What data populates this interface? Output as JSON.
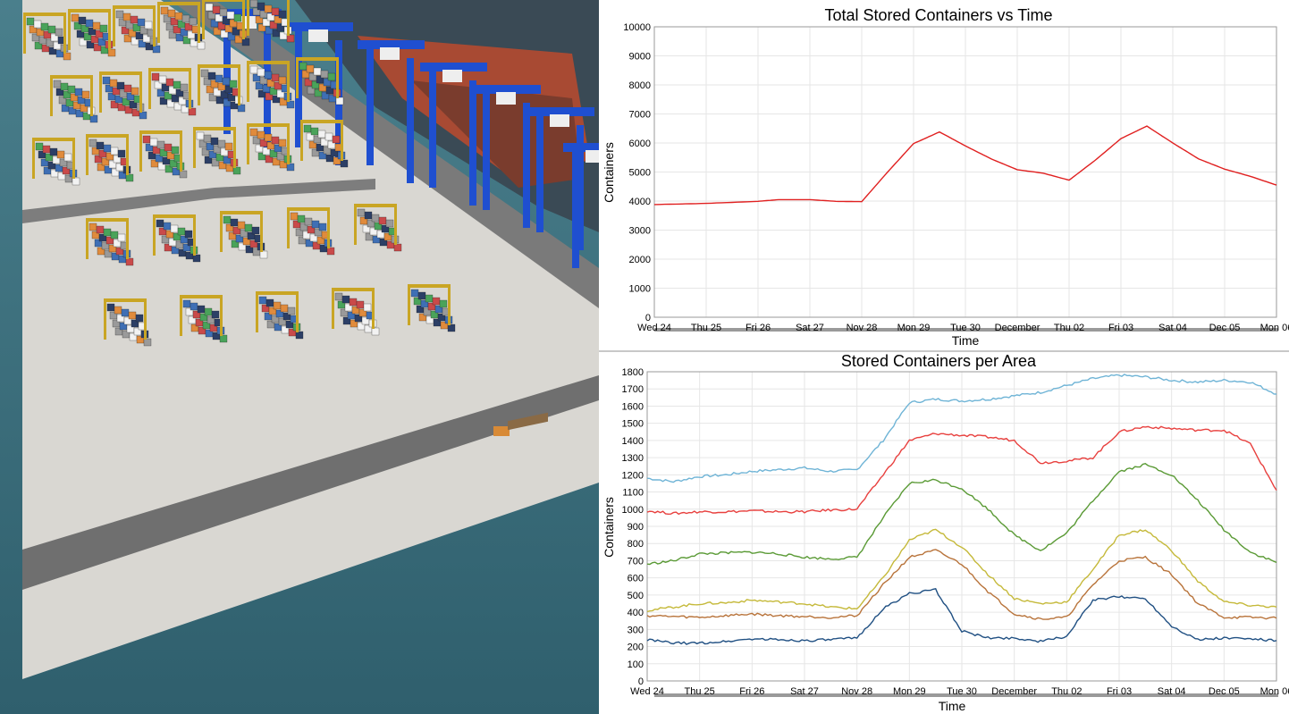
{
  "viewport": {
    "label": "",
    "colors": {
      "water": "#3d6a7a",
      "ground": "#d9d7d2",
      "road": "#6f6f6f",
      "crane_blue": "#1f4fd0",
      "gantry_yellow": "#c9a524"
    }
  },
  "chart_data": [
    {
      "type": "line",
      "title": "Total Stored Containers vs Time",
      "xlabel": "Time",
      "ylabel": "Containers",
      "ylim": [
        0,
        10000
      ],
      "yticks": [
        0,
        1000,
        2000,
        3000,
        4000,
        5000,
        6000,
        7000,
        8000,
        9000,
        10000
      ],
      "xticks": [
        "Wed 24",
        "Thu 25",
        "Fri 26",
        "Sat 27",
        "Nov 28",
        "Mon 29",
        "Tue 30",
        "December",
        "Thu 02",
        "Fri 03",
        "Sat 04",
        "Dec 05",
        "Mon 06"
      ],
      "grid": true,
      "series": [
        {
          "color": "#e02020",
          "x": [
            0,
            1,
            2,
            2.4,
            3,
            3.5,
            4,
            4.5,
            5,
            5.5,
            6,
            6.5,
            7,
            7.5,
            8,
            8.5,
            9,
            9.5,
            10,
            10.5,
            11,
            11.5,
            12
          ],
          "values": [
            3880,
            3920,
            3990,
            4050,
            4050,
            3990,
            3980,
            5000,
            5980,
            6380,
            5900,
            5450,
            5080,
            4960,
            4720,
            5400,
            6150,
            6580,
            6000,
            5450,
            5100,
            4850,
            4550
          ]
        }
      ]
    },
    {
      "type": "line",
      "title": "Stored Containers per Area",
      "xlabel": "Time",
      "ylabel": "Containers",
      "ylim": [
        0,
        1800
      ],
      "yticks": [
        0,
        100,
        200,
        300,
        400,
        500,
        600,
        700,
        800,
        900,
        1000,
        1100,
        1200,
        1300,
        1400,
        1500,
        1600,
        1700,
        1800
      ],
      "xticks": [
        "Wed 24",
        "Thu 25",
        "Fri 26",
        "Sat 27",
        "Nov 28",
        "Mon 29",
        "Tue 30",
        "December",
        "Thu 02",
        "Fri 03",
        "Sat 04",
        "Dec 05",
        "Mon 06"
      ],
      "grid": true,
      "series": [
        {
          "color": "#6fb4d6",
          "x": [
            0,
            0.5,
            1,
            1.5,
            2,
            2.5,
            3,
            3.5,
            4,
            4.5,
            5,
            5.5,
            6,
            6.5,
            7,
            7.5,
            8,
            8.5,
            9,
            9.5,
            10,
            10.5,
            11,
            11.5,
            12
          ],
          "values": [
            1180,
            1160,
            1190,
            1200,
            1220,
            1230,
            1240,
            1220,
            1230,
            1400,
            1620,
            1640,
            1630,
            1640,
            1660,
            1680,
            1720,
            1760,
            1780,
            1770,
            1750,
            1740,
            1750,
            1740,
            1670
          ]
        },
        {
          "color": "#e8403e",
          "x": [
            0,
            0.5,
            1,
            1.5,
            2,
            2.5,
            3,
            3.5,
            4,
            4.5,
            5,
            5.5,
            6,
            6.5,
            7,
            7.5,
            8,
            8.5,
            9,
            9.5,
            10,
            10.5,
            11,
            11.5,
            12
          ],
          "values": [
            990,
            975,
            985,
            985,
            990,
            985,
            985,
            995,
            1000,
            1200,
            1400,
            1440,
            1430,
            1420,
            1400,
            1270,
            1280,
            1300,
            1450,
            1480,
            1470,
            1460,
            1460,
            1380,
            1110
          ]
        },
        {
          "color": "#5a9a35",
          "x": [
            0,
            0.5,
            1,
            1.5,
            2,
            2.5,
            3,
            3.5,
            4,
            4.5,
            5,
            5.5,
            6,
            6.5,
            7,
            7.5,
            8,
            8.5,
            9,
            9.5,
            10,
            10.5,
            11,
            11.5,
            12
          ],
          "values": [
            680,
            700,
            740,
            745,
            750,
            740,
            720,
            710,
            720,
            950,
            1150,
            1170,
            1120,
            1000,
            850,
            760,
            860,
            1050,
            1220,
            1260,
            1200,
            1050,
            880,
            750,
            690
          ]
        },
        {
          "color": "#c5b93a",
          "x": [
            0,
            0.5,
            1,
            1.5,
            2,
            2.5,
            3,
            3.5,
            4,
            4.5,
            5,
            5.5,
            6,
            6.5,
            7,
            7.5,
            8,
            8.5,
            9,
            9.5,
            10,
            10.5,
            11,
            11.5,
            12
          ],
          "values": [
            410,
            430,
            450,
            455,
            470,
            460,
            450,
            430,
            420,
            600,
            820,
            880,
            780,
            620,
            480,
            450,
            460,
            650,
            850,
            880,
            760,
            580,
            460,
            440,
            430
          ]
        },
        {
          "color": "#b8733a",
          "x": [
            0,
            0.5,
            1,
            1.5,
            2,
            2.5,
            3,
            3.5,
            4,
            4.5,
            5,
            5.5,
            6,
            6.5,
            7,
            7.5,
            8,
            8.5,
            9,
            9.5,
            10,
            10.5,
            11,
            11.5,
            12
          ],
          "values": [
            380,
            375,
            370,
            380,
            390,
            380,
            375,
            370,
            380,
            560,
            720,
            760,
            680,
            520,
            390,
            360,
            370,
            560,
            700,
            720,
            620,
            450,
            370,
            370,
            365
          ]
        },
        {
          "color": "#1f4f82",
          "x": [
            0,
            0.5,
            1,
            1.5,
            2,
            2.5,
            3,
            3.5,
            4,
            4.5,
            5,
            5.5,
            6,
            6.5,
            7,
            7.5,
            8,
            8.5,
            9,
            9.5,
            10,
            10.5,
            11,
            11.5,
            12
          ],
          "values": [
            240,
            220,
            220,
            230,
            245,
            240,
            235,
            240,
            250,
            420,
            510,
            530,
            290,
            250,
            250,
            230,
            260,
            470,
            490,
            480,
            320,
            240,
            250,
            245,
            235
          ]
        }
      ]
    }
  ]
}
